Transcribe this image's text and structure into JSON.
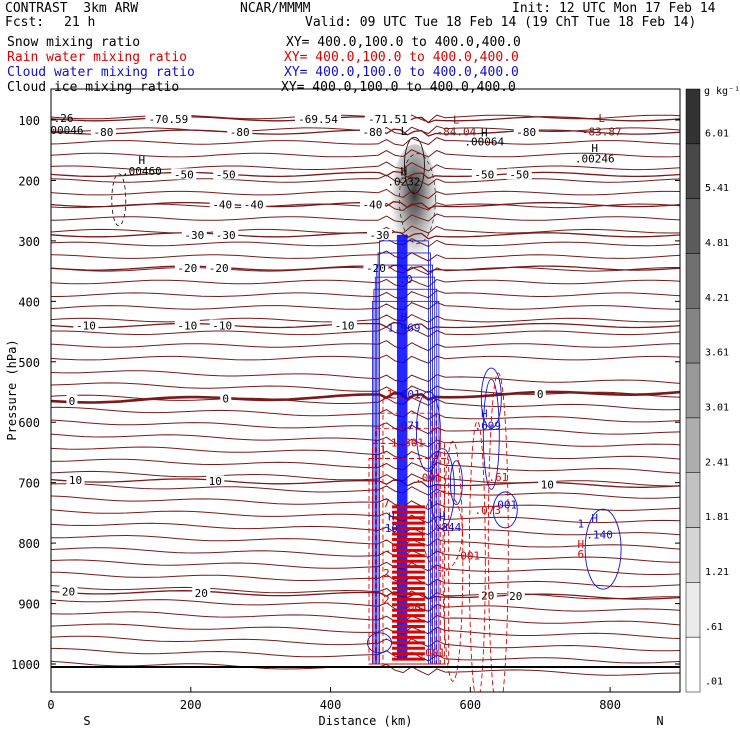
{
  "header": {
    "model": "CONTRAST  3km ARW",
    "org": "NCAR/MMMM",
    "init": "Init: 12 UTC Mon 17 Feb 14",
    "fcst_label": "Fcst:",
    "fcst_value": "21 h",
    "valid": "Valid: 09 UTC Tue 18 Feb 14 (19 ChT Tue 18 Feb 14)",
    "layers": [
      {
        "name": "Snow mixing ratio",
        "xy": "XY= 400.0,100.0 to 400.0,400.0",
        "color": "#000000"
      },
      {
        "name": "Rain water mixing ratio",
        "xy": "XY= 400.0,100.0 to 400.0,400.0",
        "color": "#e00000"
      },
      {
        "name": "Cloud water mixing ratio",
        "xy": "XY= 400.0,100.0 to 400.0,400.0",
        "color": "#1010d0"
      },
      {
        "name": "Cloud ice mixing ratio",
        "xy": "XY= 400.0,100.0 to 400.0,400.0",
        "color": "#000000"
      }
    ]
  },
  "chart_data": {
    "type": "contour-cross-section",
    "xlabel": "Distance (km)",
    "ylabel": "Pressure (hPa)",
    "xlim": [
      0,
      900
    ],
    "ylim": [
      1020,
      60
    ],
    "x_ticks": [
      0,
      200,
      400,
      600,
      800
    ],
    "y_ticks": [
      100,
      200,
      300,
      400,
      500,
      600,
      700,
      800,
      900,
      1000
    ],
    "x_end_labels": {
      "left": "S",
      "right": "N"
    },
    "colorbar": {
      "unit_label": "g kg⁻¹",
      "levels": [
        ".01",
        ".61",
        "1.21",
        "1.81",
        "2.41",
        "3.01",
        "3.61",
        "4.21",
        "4.81",
        "5.41",
        "6.01"
      ]
    },
    "temperature_contours": [
      {
        "temp": -80,
        "p_left": 120,
        "p_right": 120,
        "labels": [
          {
            "x": 75,
            "text": "-80"
          },
          {
            "x": 270,
            "text": "-80"
          },
          {
            "x": 460,
            "text": "-80"
          },
          {
            "x": 680,
            "text": "-80"
          }
        ]
      },
      {
        "temp": -70,
        "p_left": 98,
        "p_right": 98,
        "labels": [
          {
            "x": 168,
            "text": "-70.59"
          },
          {
            "x": 382,
            "text": "-69.54"
          },
          {
            "x": 482,
            "text": "-71.51"
          }
        ]
      },
      {
        "temp": -50,
        "p_left": 190,
        "p_right": 190,
        "labels": [
          {
            "x": 190,
            "text": "-50"
          },
          {
            "x": 250,
            "text": "-50"
          },
          {
            "x": 620,
            "text": "-50"
          },
          {
            "x": 670,
            "text": "-50"
          }
        ]
      },
      {
        "temp": -40,
        "p_left": 240,
        "p_right": 240,
        "labels": [
          {
            "x": 245,
            "text": "-40"
          },
          {
            "x": 290,
            "text": "-40"
          },
          {
            "x": 460,
            "text": "-40"
          }
        ]
      },
      {
        "temp": -30,
        "p_left": 290,
        "p_right": 290,
        "labels": [
          {
            "x": 205,
            "text": "-30"
          },
          {
            "x": 250,
            "text": "-30"
          },
          {
            "x": 470,
            "text": "-30"
          }
        ]
      },
      {
        "temp": -20,
        "p_left": 345,
        "p_right": 345,
        "labels": [
          {
            "x": 195,
            "text": "-20"
          },
          {
            "x": 240,
            "text": "-20"
          },
          {
            "x": 465,
            "text": "-20"
          }
        ]
      },
      {
        "temp": -10,
        "p_left": 440,
        "p_right": 440,
        "labels": [
          {
            "x": 50,
            "text": "-10"
          },
          {
            "x": 195,
            "text": "-10"
          },
          {
            "x": 245,
            "text": "-10"
          },
          {
            "x": 420,
            "text": "-10"
          }
        ]
      },
      {
        "temp": 0,
        "p_left": 565,
        "p_right": 550,
        "labels": [
          {
            "x": 30,
            "text": "0"
          },
          {
            "x": 250,
            "text": "0"
          },
          {
            "x": 700,
            "text": "0"
          }
        ]
      },
      {
        "temp": 10,
        "p_left": 695,
        "p_right": 705,
        "labels": [
          {
            "x": 35,
            "text": "10"
          },
          {
            "x": 235,
            "text": "10"
          },
          {
            "x": 710,
            "text": "10"
          }
        ]
      },
      {
        "temp": 20,
        "p_left": 880,
        "p_right": 890,
        "labels": [
          {
            "x": 25,
            "text": "20"
          },
          {
            "x": 215,
            "text": "20"
          },
          {
            "x": 625,
            "text": "20"
          },
          {
            "x": 665,
            "text": "20"
          }
        ]
      }
    ],
    "point_labels": [
      {
        "x": 18,
        "p": 103,
        "text": ".26",
        "color": "#000000"
      },
      {
        "x": 18,
        "p": 123,
        "text": ".00046",
        "color": "#000000"
      },
      {
        "x": 620,
        "p": 127,
        "text": "H",
        "color": "#000000"
      },
      {
        "x": 620,
        "p": 142,
        "text": ".00064",
        "color": "#000000"
      },
      {
        "x": 580,
        "p": 106,
        "text": "L",
        "color": "#7a1a1a"
      },
      {
        "x": 580,
        "p": 126,
        "text": "-84.04",
        "color": "#7a1a1a"
      },
      {
        "x": 788,
        "p": 103,
        "text": "L",
        "color": "#7a1a1a"
      },
      {
        "x": 788,
        "p": 126,
        "text": "-83.87",
        "color": "#7a1a1a"
      },
      {
        "x": 778,
        "p": 153,
        "text": "H",
        "color": "#000000"
      },
      {
        "x": 778,
        "p": 170,
        "text": ".00246",
        "color": "#000000"
      },
      {
        "x": 130,
        "p": 173,
        "text": "H",
        "color": "#000000"
      },
      {
        "x": 130,
        "p": 191,
        "text": ".00460",
        "color": "#000000"
      },
      {
        "x": 505,
        "p": 191,
        "text": "H",
        "color": "#000000"
      },
      {
        "x": 505,
        "p": 208,
        "text": ".0232",
        "color": "#000000"
      },
      {
        "x": 505,
        "p": 125,
        "text": "L",
        "color": "#000000"
      },
      {
        "x": 505,
        "p": 432,
        "text": "H",
        "color": "#1010d0"
      },
      {
        "x": 505,
        "p": 450,
        "text": "1.969",
        "color": "#1010d0"
      },
      {
        "x": 508,
        "p": 370,
        "text": ".0",
        "color": "#1010d0"
      },
      {
        "x": 510,
        "p": 560,
        "text": ".001",
        "color": "#1010d0"
      },
      {
        "x": 510,
        "p": 612,
        "text": ".071",
        "color": "#1010d0"
      },
      {
        "x": 510,
        "p": 640,
        "text": "1.801",
        "color": "#e00000"
      },
      {
        "x": 620,
        "p": 592,
        "text": "H",
        "color": "#1010d0"
      },
      {
        "x": 625,
        "p": 612,
        "text": ".699",
        "color": "#1010d0"
      },
      {
        "x": 540,
        "p": 698,
        "text": ".001",
        "color": "#e00000"
      },
      {
        "x": 640,
        "p": 697,
        "text": ".61",
        "color": "#e00000"
      },
      {
        "x": 648,
        "p": 743,
        "text": ".001",
        "color": "#1010d0"
      },
      {
        "x": 625,
        "p": 752,
        "text": ".073",
        "color": "#e00000"
      },
      {
        "x": 560,
        "p": 763,
        "text": "H",
        "color": "#1010d0"
      },
      {
        "x": 568,
        "p": 780,
        "text": ".844",
        "color": "#1010d0"
      },
      {
        "x": 595,
        "p": 827,
        "text": ".001",
        "color": "#e00000"
      },
      {
        "x": 487,
        "p": 763,
        "text": "H",
        "color": "#1010d0"
      },
      {
        "x": 487,
        "p": 782,
        "text": "10",
        "color": "#1010d0"
      },
      {
        "x": 492,
        "p": 815,
        "text": ".00",
        "color": "#e00000"
      },
      {
        "x": 758,
        "p": 774,
        "text": "1",
        "color": "#1010d0"
      },
      {
        "x": 758,
        "p": 825,
        "text": "6",
        "color": "#e00000"
      },
      {
        "x": 778,
        "p": 765,
        "text": "H",
        "color": "#1010d0"
      },
      {
        "x": 785,
        "p": 792,
        "text": ".140",
        "color": "#1010d0"
      },
      {
        "x": 758,
        "p": 808,
        "text": "H",
        "color": "#e00000"
      },
      {
        "x": 545,
        "p": 988,
        "text": ".001",
        "color": "#e00000"
      },
      {
        "x": 475,
        "p": 652,
        "text": "1",
        "color": "#e00000"
      },
      {
        "x": 480,
        "p": 740,
        "text": "7",
        "color": "#e00000"
      },
      {
        "x": 480,
        "p": 856,
        "text": "2",
        "color": "#e00000"
      },
      {
        "x": 480,
        "p": 900,
        "text": "2",
        "color": "#e00000"
      },
      {
        "x": 485,
        "p": 560,
        "text": "1",
        "color": "#e00000"
      },
      {
        "x": 520,
        "p": 912,
        "text": ".001",
        "color": "#e00000"
      }
    ],
    "snow_core": {
      "x": 520,
      "p_top": 140,
      "p_bottom": 370,
      "peak": 6.0
    },
    "rain_columns": [
      {
        "x1": 480,
        "x2": 540,
        "p_top": 560,
        "p_bottom": 1000
      }
    ],
    "cloud_water_columns": [
      {
        "x1": 495,
        "x2": 510,
        "p_top": 290,
        "p_bottom": 990
      }
    ]
  }
}
